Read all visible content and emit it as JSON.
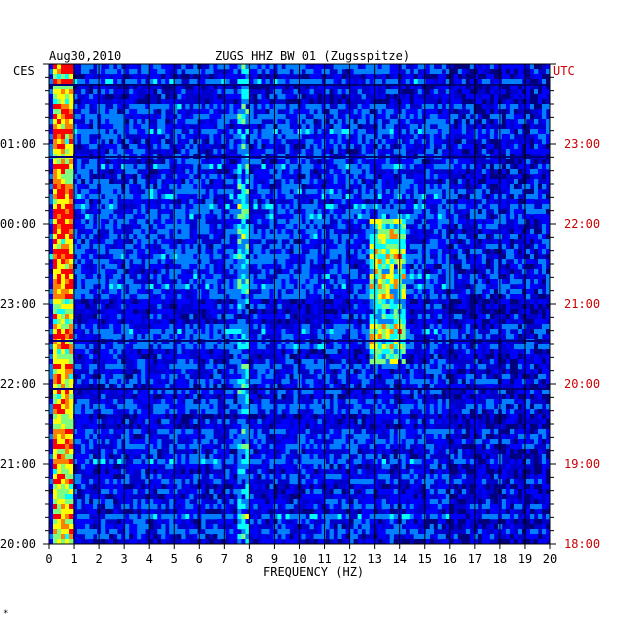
{
  "chart_data": {
    "type": "heatmap",
    "title": "ZUGS HHZ BW 01 (Zugsspitze)",
    "date": "Aug30,2010",
    "xlabel": "FREQUENCY (HZ)",
    "xlim": [
      0,
      20
    ],
    "x_ticks": [
      "0",
      "1",
      "2",
      "3",
      "4",
      "5",
      "6",
      "7",
      "8",
      "9",
      "10",
      "11",
      "12",
      "13",
      "14",
      "15",
      "16",
      "17",
      "18",
      "19",
      "20"
    ],
    "left_axis": {
      "label": "CES",
      "ticks": [
        "01:00",
        "00:00",
        "23:00",
        "22:00",
        "21:00",
        "20:00"
      ],
      "color": "#000000"
    },
    "right_axis": {
      "label": "UTC",
      "ticks": [
        "23:00",
        "22:00",
        "21:00",
        "20:00",
        "19:00",
        "18:00"
      ],
      "color": "#cc0000"
    },
    "hours_shown": 6,
    "colormap": [
      "#00007f",
      "#0000ff",
      "#007fff",
      "#00ffff",
      "#7fff7f",
      "#ffff00",
      "#ff7f00",
      "#ff0000"
    ],
    "energy_bands_hz": [
      {
        "range": [
          0.1,
          0.9
        ],
        "description": "strong low-frequency band, yellow/red"
      },
      {
        "range": [
          7.6,
          8.0
        ],
        "description": "moderate band"
      },
      {
        "range": [
          12.8,
          14.2
        ],
        "description": "tremor band 21:00–23:00 UTC"
      }
    ],
    "grid": true
  },
  "footer_mark": "*"
}
